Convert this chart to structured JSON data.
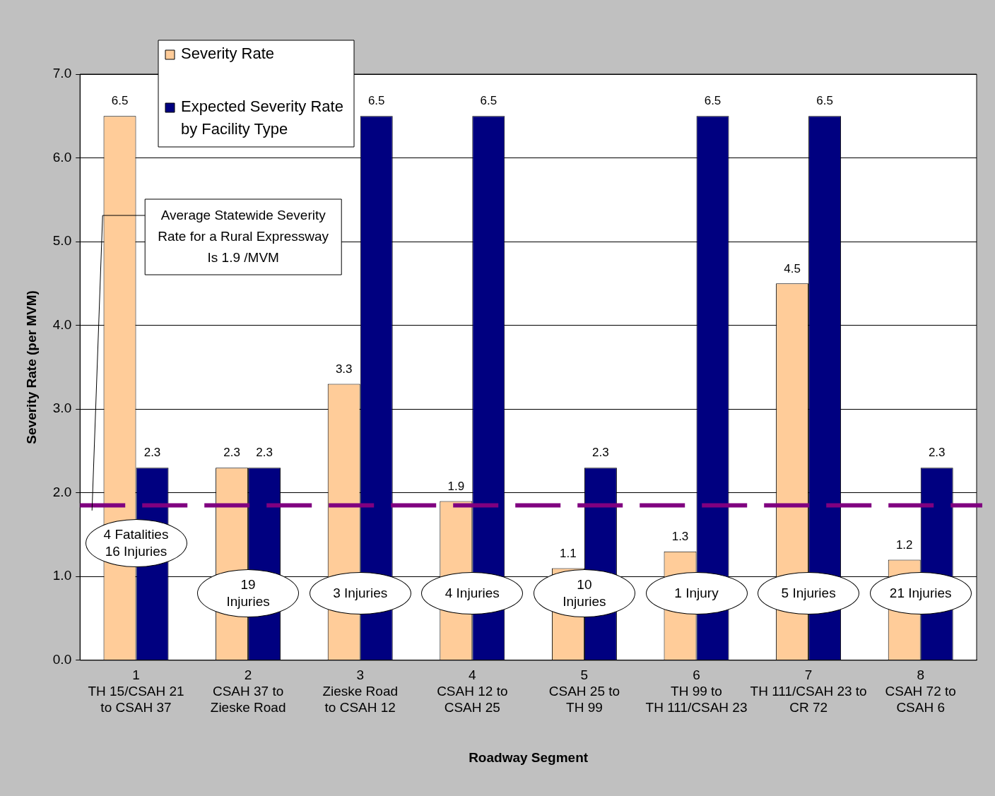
{
  "chart_data": {
    "type": "bar",
    "xlabel": "Roadway Segment",
    "ylabel": "Severity Rate (per MVM)",
    "categories": [
      "1\nTH 15/CSAH 21\nto CSAH 37",
      "2\nCSAH 37 to\nZieske Road",
      "3\nZieske Road\nto CSAH 12",
      "4\nCSAH 12 to\nCSAH 25",
      "5\nCSAH 25 to\nTH 99",
      "6\nTH 99 to\nTH 111/CSAH 23",
      "7\nTH 111/CSAH 23 to\nCR 72",
      "8\nCSAH 72 to\nCSAH 6"
    ],
    "series": [
      {
        "name": "Severity Rate",
        "color": "#ffcc99",
        "values": [
          6.5,
          2.3,
          3.3,
          1.9,
          1.1,
          1.3,
          4.5,
          1.2
        ]
      },
      {
        "name": "Expected Severity Rate by Facility Type",
        "color": "#000080",
        "values": [
          2.3,
          2.3,
          6.5,
          6.5,
          2.3,
          6.5,
          6.5,
          2.3
        ]
      }
    ],
    "ylim": [
      0,
      7
    ],
    "yticks": [
      {
        "value": 0,
        "label": "0.0"
      },
      {
        "value": 1,
        "label": "1.0"
      },
      {
        "value": 2,
        "label": "2.0"
      },
      {
        "value": 3,
        "label": "3.0"
      },
      {
        "value": 4,
        "label": "4.0"
      },
      {
        "value": 5,
        "label": "5.0"
      },
      {
        "value": 6,
        "label": "6.0"
      },
      {
        "value": 7,
        "label": "7.0"
      }
    ],
    "grid": "y",
    "legend": "top left",
    "data_labels": true,
    "ref_lines": [
      {
        "axis": "y",
        "value": 1.85,
        "color": "#800080",
        "line_style": "dashed"
      }
    ],
    "annotations": [
      "Average Statewide Severity Rate for a Rural Expressway Is 1.9 /MVM",
      {
        "text": "4 Fatalities\n16 Injuries",
        "x": "1\nTH 15/CSAH 21\nto CSAH 37",
        "y": 1.4
      },
      {
        "text": "19\nInjuries",
        "x": "2\nCSAH 37 to\nZieske Road",
        "y": 0.8
      },
      {
        "text": "3 Injuries",
        "x": "3\nZieske Road\nto CSAH 12",
        "y": 0.8
      },
      {
        "text": "4 Injuries",
        "x": "4\nCSAH 12 to\nCSAH 25",
        "y": 0.8
      },
      {
        "text": "10\nInjuries",
        "x": "5\nCSAH 25 to\nTH 99",
        "y": 0.8
      },
      {
        "text": "1 Injury",
        "x": "6\nTH 99 to\nTH 111/CSAH 23",
        "y": 0.8
      },
      {
        "text": "5 Injuries",
        "x": "7\nTH 111/CSAH 23 to\nCR 72",
        "y": 0.8
      },
      {
        "text": "21 Injuries",
        "x": "8\nCSAH 72 to\nCSAH 6",
        "y": 0.8
      }
    ]
  }
}
